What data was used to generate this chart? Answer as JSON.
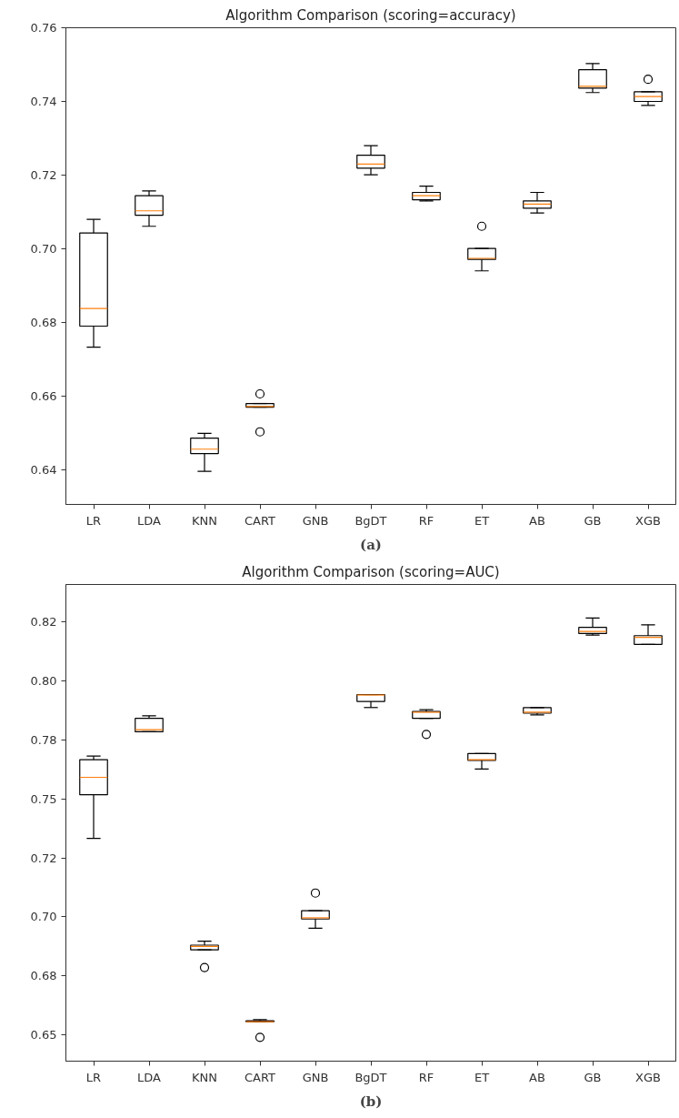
{
  "chart_data": [
    {
      "type": "box",
      "title": "Algorithm Comparison (scoring=accuracy)",
      "categories": [
        "LR",
        "LDA",
        "KNN",
        "CART",
        "GNB",
        "BgDT",
        "RF",
        "ET",
        "AB",
        "GB",
        "XGB"
      ],
      "boxes": [
        {
          "low": 0.6733,
          "q1": 0.679,
          "median": 0.6838,
          "q3": 0.7043,
          "high": 0.708
        },
        {
          "low": 0.7061,
          "q1": 0.7091,
          "median": 0.7103,
          "q3": 0.7144,
          "high": 0.7157
        },
        {
          "low": 0.6396,
          "q1": 0.6444,
          "median": 0.6456,
          "q3": 0.6486,
          "high": 0.6499
        },
        {
          "low": 0.657,
          "q1": 0.657,
          "median": 0.6572,
          "q3": 0.658,
          "high": 0.658,
          "outliers": [
            0.6606,
            0.6503
          ]
        },
        null,
        {
          "low": 0.7201,
          "q1": 0.7219,
          "median": 0.723,
          "q3": 0.7254,
          "high": 0.728
        },
        {
          "low": 0.713,
          "q1": 0.7133,
          "median": 0.7144,
          "q3": 0.7153,
          "high": 0.717
        },
        {
          "low": 0.694,
          "q1": 0.6971,
          "median": 0.6974,
          "q3": 0.7001,
          "high": 0.7001,
          "outliers": [
            0.7061
          ]
        },
        {
          "low": 0.7097,
          "q1": 0.711,
          "median": 0.7121,
          "q3": 0.713,
          "high": 0.7153
        },
        {
          "low": 0.7424,
          "q1": 0.7436,
          "median": 0.7441,
          "q3": 0.7486,
          "high": 0.7503
        },
        {
          "low": 0.7389,
          "q1": 0.74,
          "median": 0.7413,
          "q3": 0.7426,
          "high": 0.7426,
          "outliers": [
            0.746
          ]
        }
      ],
      "ylim": [
        0.6306,
        0.76
      ],
      "yticks": [
        {
          "value": 0.64,
          "label": "0.64"
        },
        {
          "value": 0.66,
          "label": "0.66"
        },
        {
          "value": 0.68,
          "label": "0.68"
        },
        {
          "value": 0.7,
          "label": "0.70"
        },
        {
          "value": 0.72,
          "label": "0.72"
        },
        {
          "value": 0.74,
          "label": "0.74"
        },
        {
          "value": 0.76,
          "label": "0.76"
        }
      ],
      "annotations": [
        "(a)"
      ]
    },
    {
      "type": "box",
      "title": "Algorithm Comparison (scoring=AUC)",
      "categories": [
        "LR",
        "LDA",
        "KNN",
        "CART",
        "GNB",
        "BgDT",
        "RF",
        "ET",
        "AB",
        "GB",
        "XGB"
      ],
      "boxes": [
        {
          "low": 0.7333,
          "q1": 0.7518,
          "median": 0.7592,
          "q3": 0.7667,
          "high": 0.7682
        },
        {
          "low": 0.7785,
          "q1": 0.7785,
          "median": 0.7794,
          "q3": 0.7842,
          "high": 0.7853
        },
        {
          "low": 0.686,
          "q1": 0.686,
          "median": 0.6875,
          "q3": 0.688,
          "high": 0.6897,
          "outliers": [
            0.6785
          ]
        },
        {
          "low": 0.6555,
          "q1": 0.6555,
          "median": 0.6555,
          "q3": 0.6559,
          "high": 0.6564,
          "outliers": [
            0.6489
          ]
        },
        {
          "low": 0.6952,
          "q1": 0.6991,
          "median": 0.6996,
          "q3": 0.7026,
          "high": 0.7026,
          "outliers": [
            0.7101
          ]
        },
        {
          "low": 0.7888,
          "q1": 0.7914,
          "median": 0.7941,
          "q3": 0.7943,
          "high": 0.7943
        },
        {
          "low": 0.7842,
          "q1": 0.7842,
          "median": 0.7868,
          "q3": 0.7871,
          "high": 0.7879,
          "outliers": [
            0.7774
          ]
        },
        {
          "low": 0.7627,
          "q1": 0.7664,
          "median": 0.7667,
          "q3": 0.7693,
          "high": 0.7693
        },
        {
          "low": 0.7857,
          "q1": 0.7864,
          "median": 0.7868,
          "q3": 0.7888,
          "high": 0.7888
        },
        {
          "low": 0.8195,
          "q1": 0.8202,
          "median": 0.8211,
          "q3": 0.8228,
          "high": 0.8268
        },
        {
          "low": 0.8156,
          "q1": 0.8156,
          "median": 0.8186,
          "q3": 0.8193,
          "high": 0.8239
        }
      ],
      "ylim": [
        0.6388,
        0.841
      ],
      "yticks": [
        {
          "value": 0.65,
          "label": "0.65"
        },
        {
          "value": 0.675,
          "label": "0.68"
        },
        {
          "value": 0.7,
          "label": "0.70"
        },
        {
          "value": 0.725,
          "label": "0.72"
        },
        {
          "value": 0.75,
          "label": "0.75"
        },
        {
          "value": 0.775,
          "label": "0.78"
        },
        {
          "value": 0.8,
          "label": "0.80"
        },
        {
          "value": 0.825,
          "label": "0.82"
        }
      ],
      "annotations": [
        "(b)"
      ]
    }
  ]
}
